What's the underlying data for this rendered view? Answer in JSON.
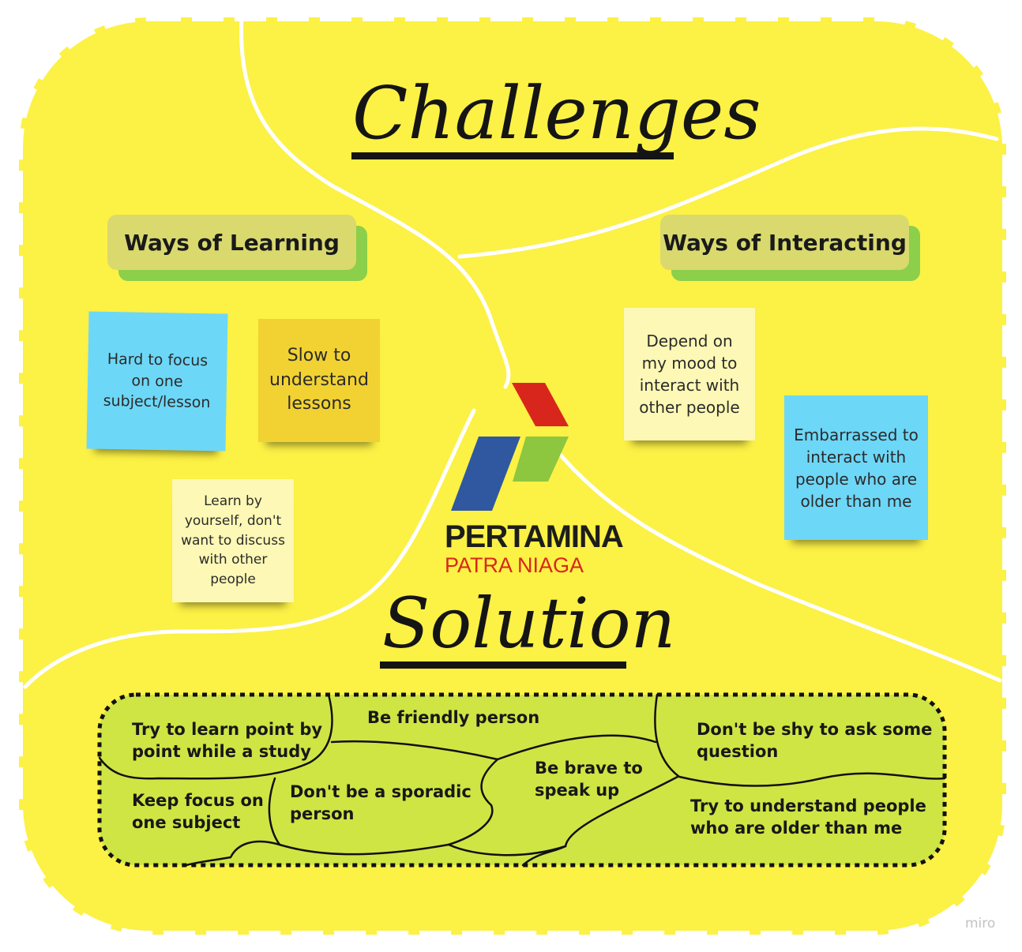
{
  "titles": {
    "challenges": "Challenges",
    "solution": "Solution"
  },
  "categories": {
    "learning": "Ways of Learning",
    "interacting": "Ways of Interacting"
  },
  "notes": {
    "hard_to_focus": "Hard to focus on one subject/lesson",
    "slow_to_understand": "Slow to understand lessons",
    "learn_by_yourself": "Learn by yourself, don't want to discuss with other people",
    "depend_on_mood": "Depend on my mood to interact with other people",
    "embarrassed": "Embarrassed to interact with people who are older than me"
  },
  "logo": {
    "name": "PERTAMINA",
    "subtitle": "PATRA NIAGA"
  },
  "solutions": {
    "learn_point_by_point": "Try to learn point by point while a study",
    "friendly": "Be friendly person",
    "not_shy": "Don't be shy to ask some question",
    "brave": "Be brave to speak up",
    "keep_focus": "Keep focus on one subject",
    "not_sporadic": "Don't be a sporadic person",
    "understand_older": "Try to understand people who are older than me"
  },
  "watermark": "miro",
  "colors": {
    "board": "#fcf145",
    "note_blue": "#6dd7f7",
    "note_orange": "#f2d232",
    "note_cream": "#fdf8b5",
    "category_face": "#d9d96e",
    "category_shadow": "#8ccf4a",
    "solution_fill": "#cfe544",
    "logo_red": "#d9261c",
    "logo_blue": "#2f58a0",
    "logo_green": "#8dc63f"
  }
}
